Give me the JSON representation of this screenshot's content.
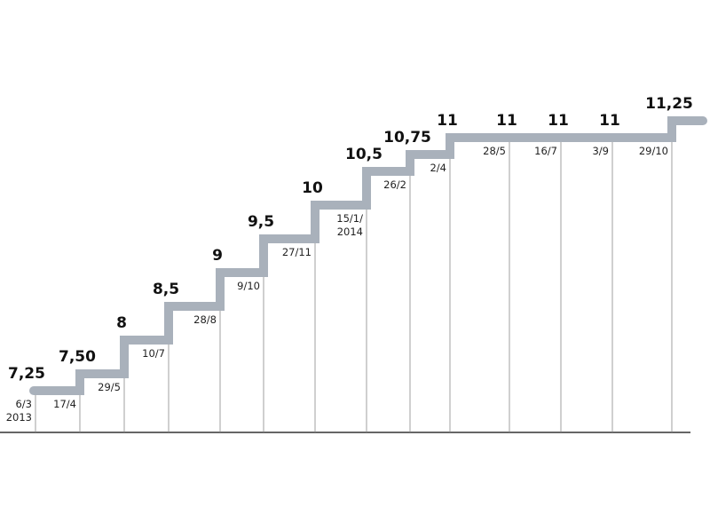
{
  "chart_data": {
    "type": "step",
    "categories": [
      "6/3 2013",
      "17/4",
      "29/5",
      "10/7",
      "28/8",
      "9/10",
      "27/11",
      "15/1/ 2014",
      "26/2",
      "2/4",
      "28/5",
      "16/7",
      "3/9",
      "29/10"
    ],
    "values": [
      7.25,
      7.5,
      8,
      8.5,
      9,
      9.5,
      10,
      10.5,
      10.75,
      11,
      11,
      11,
      11,
      11.25
    ],
    "value_labels": [
      "7,25",
      "7,50",
      "8",
      "8,5",
      "9",
      "9,5",
      "10",
      "10,5",
      "10,75",
      "11",
      "11",
      "11",
      "11",
      "11,25"
    ],
    "color": "#a9b1bb"
  }
}
